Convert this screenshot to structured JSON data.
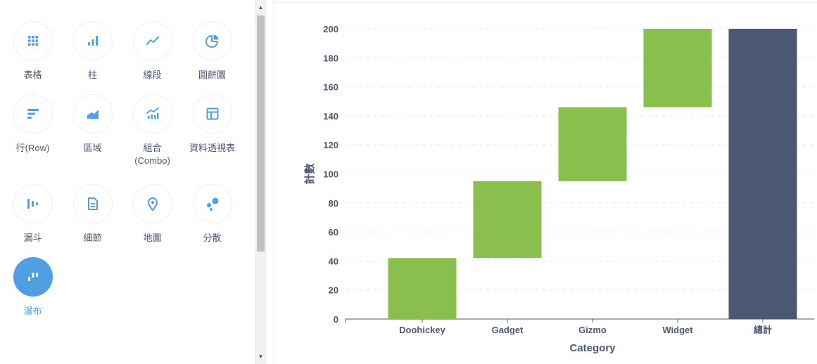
{
  "viz_picker": {
    "items": [
      {
        "label": "表格",
        "icon": "table-grid-icon",
        "selected": false
      },
      {
        "label": "柱",
        "icon": "bar-chart-icon",
        "selected": false
      },
      {
        "label": "線段",
        "icon": "line-chart-icon",
        "selected": false
      },
      {
        "label": "圓餅圖",
        "icon": "pie-chart-icon",
        "selected": false
      },
      {
        "label": "行(Row)",
        "icon": "row-chart-icon",
        "selected": false
      },
      {
        "label": "區域",
        "icon": "area-chart-icon",
        "selected": false
      },
      {
        "label": "組合\n(Combo)",
        "icon": "combo-chart-icon",
        "selected": false
      },
      {
        "label": "資料透視表",
        "icon": "pivot-table-icon",
        "selected": false
      },
      {
        "label": "漏斗",
        "icon": "funnel-icon",
        "selected": false
      },
      {
        "label": "細節",
        "icon": "detail-document-icon",
        "selected": false
      },
      {
        "label": "地圖",
        "icon": "map-pin-icon",
        "selected": false
      },
      {
        "label": "分散",
        "icon": "scatter-icon",
        "selected": false
      },
      {
        "label": "瀑布",
        "icon": "waterfall-icon",
        "selected": true
      }
    ]
  },
  "colors": {
    "accent": "#509ee3",
    "increase": "#88bf4d",
    "total": "#4c5773"
  },
  "chart_data": {
    "type": "bar",
    "subtype": "waterfall",
    "categories": [
      "Doohickey",
      "Gadget",
      "Gizmo",
      "Widget",
      "總計"
    ],
    "values": [
      42,
      53,
      51,
      54,
      200
    ],
    "bar_ranges": [
      [
        0,
        42
      ],
      [
        42,
        95
      ],
      [
        95,
        146
      ],
      [
        146,
        200
      ],
      [
        0,
        200
      ]
    ],
    "is_total": [
      false,
      false,
      false,
      false,
      true
    ],
    "xlabel": "Category",
    "ylabel": "計數",
    "ylim": [
      0,
      200
    ],
    "yticks": [
      0,
      20,
      40,
      60,
      80,
      100,
      120,
      140,
      160,
      180,
      200
    ],
    "grid": true
  }
}
